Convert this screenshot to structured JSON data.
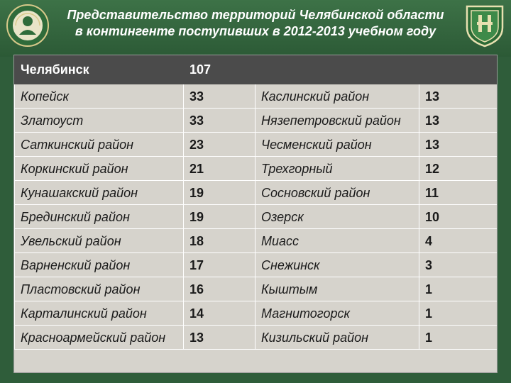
{
  "title": {
    "line1": "Представительство территорий Челябинской области",
    "line2": "в контингенте поступивших в 2012-2013 учебном году"
  },
  "head": {
    "name": "Челябинск",
    "value": "107"
  },
  "rows": [
    {
      "left": "Копейск",
      "left_value": "33",
      "right": "Каслинский район",
      "right_value": "13"
    },
    {
      "left": "Златоуст",
      "left_value": "33",
      "right": "Нязепетровский район",
      "right_value": "13"
    },
    {
      "left": "Саткинский район",
      "left_value": "23",
      "right": "Чесменский район",
      "right_value": "13"
    },
    {
      "left": "Коркинский район",
      "left_value": "21",
      "right": "Трехгорный",
      "right_value": "12"
    },
    {
      "left": "Кунашакский район",
      "left_value": "19",
      "right": "Сосновский район",
      "right_value": "11"
    },
    {
      "left": "Брединский район",
      "left_value": "19",
      "right": "Озерск",
      "right_value": "10"
    },
    {
      "left": "Увельский район",
      "left_value": "18",
      "right": "Миасс",
      "right_value": "4"
    },
    {
      "left": "Варненский район",
      "left_value": "17",
      "right": "Снежинск",
      "right_value": "3"
    },
    {
      "left": "Пластовский район",
      "left_value": "16",
      "right": "Кыштым",
      "right_value": "1"
    },
    {
      "left": "Карталинский район",
      "left_value": "14",
      "right": "Магнитогорск",
      "right_value": "1"
    },
    {
      "left": "Красноармейский район",
      "left_value": "13",
      "right": "Кизильский район",
      "right_value": "1"
    }
  ]
}
